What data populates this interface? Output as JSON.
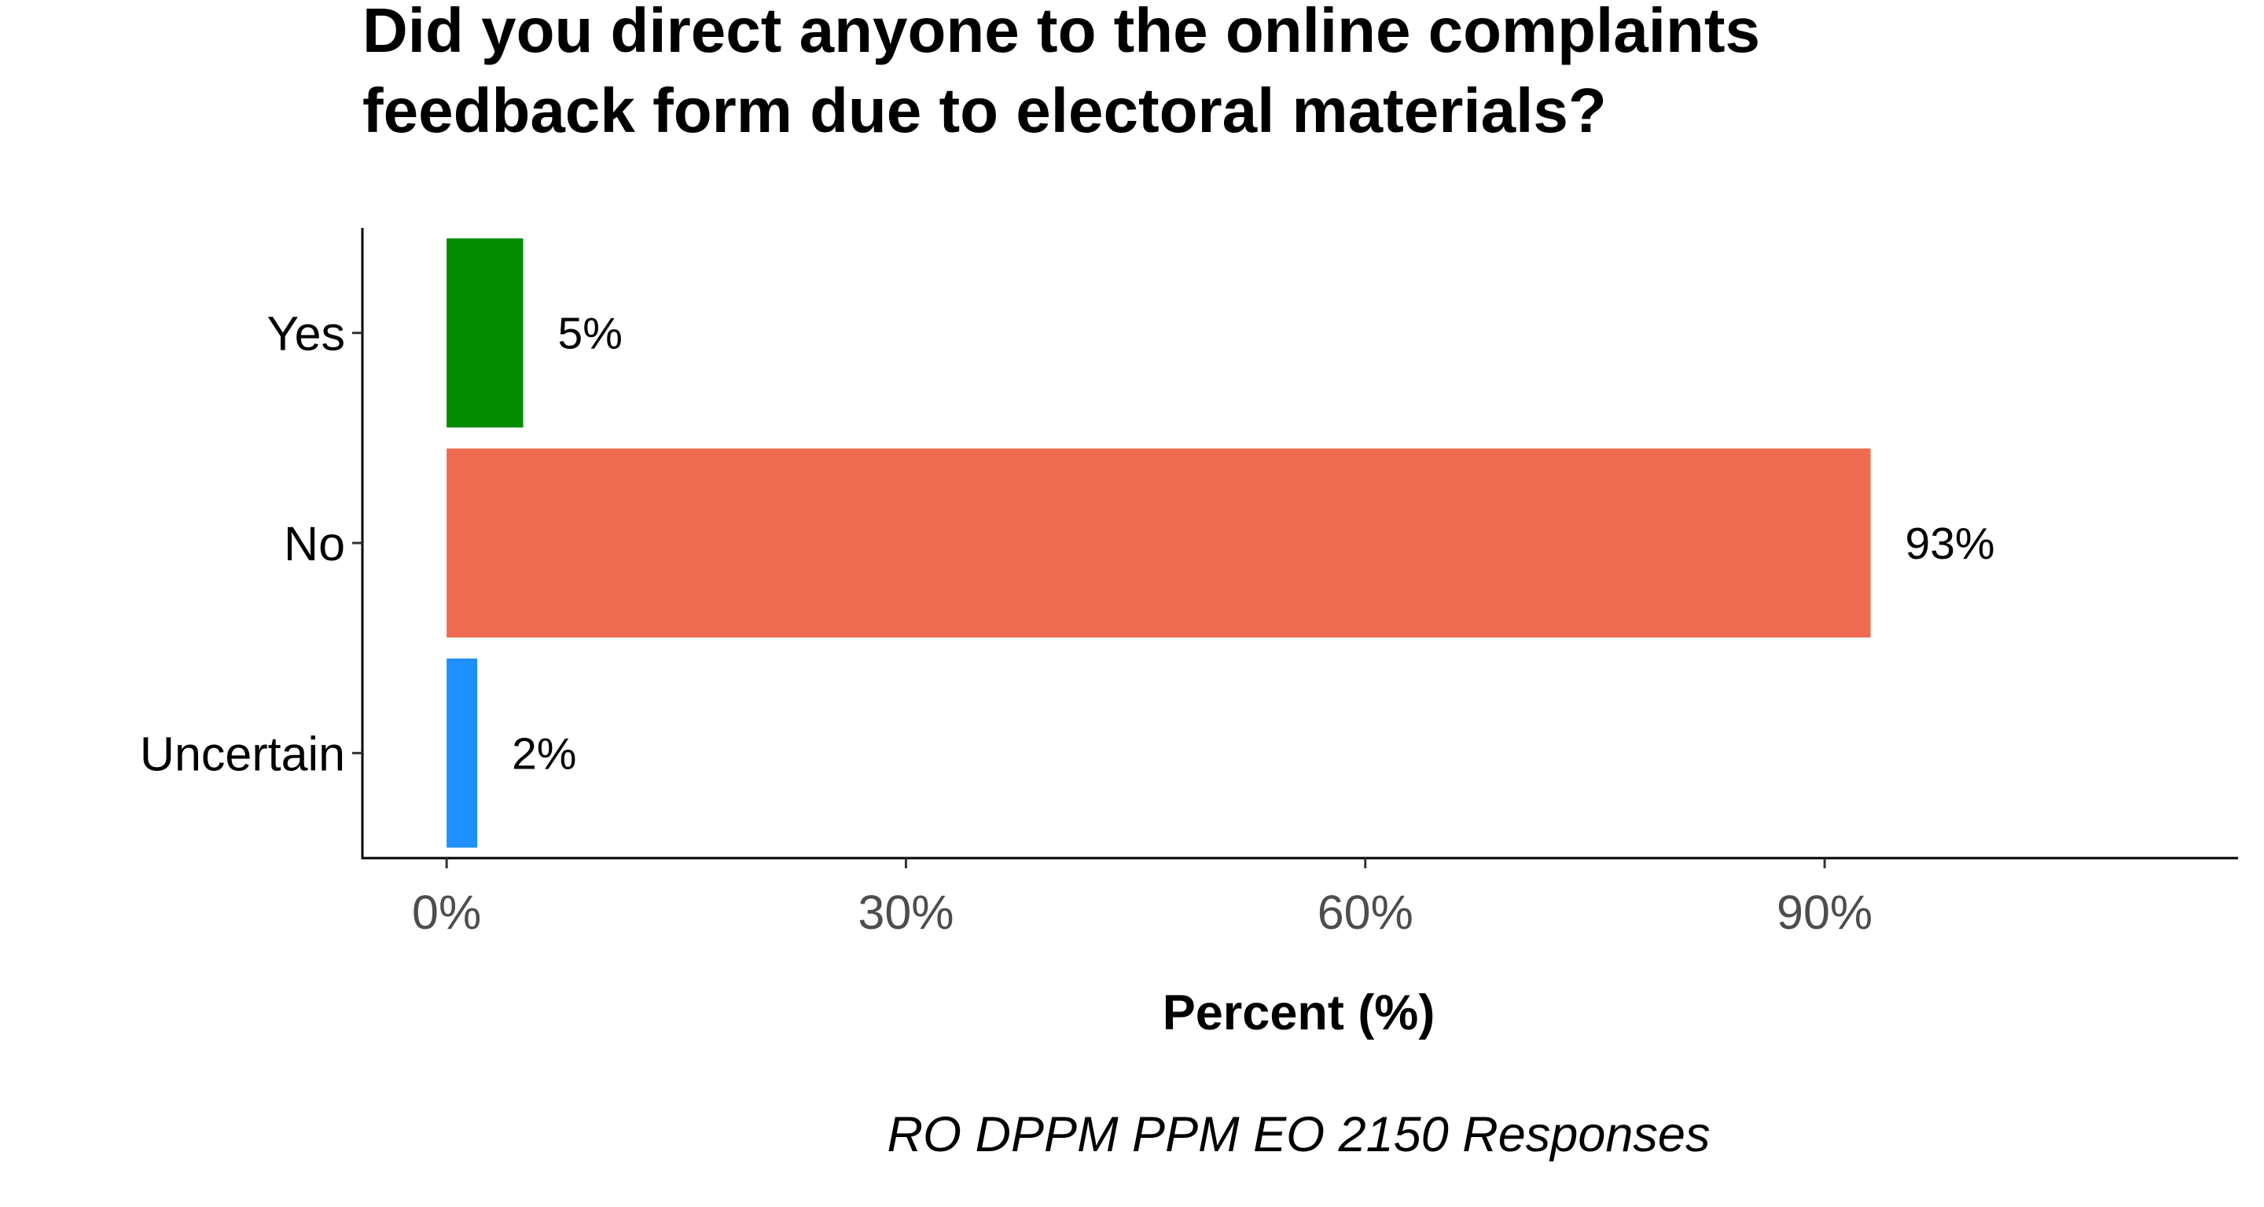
{
  "chart_data": {
    "type": "bar",
    "orientation": "horizontal",
    "title_lines": [
      "Did you direct anyone to the online complaints",
      "feedback form due to electoral materials?"
    ],
    "categories": [
      "Yes",
      "No",
      "Uncertain"
    ],
    "values": [
      5,
      93,
      2
    ],
    "data_labels": [
      "5%",
      "93%",
      "2%"
    ],
    "colors": [
      "#008B00",
      "#EE6A50",
      "#1E90FF"
    ],
    "xlabel": "Percent (%)",
    "x_ticks": [
      0,
      30,
      60,
      90
    ],
    "x_tick_labels": [
      "0%",
      "30%",
      "60%",
      "90%"
    ],
    "xlim": [
      -5.5,
      117
    ],
    "caption": "RO DPPM PPM EO 2150 Responses",
    "grid": false,
    "legend": "none"
  }
}
